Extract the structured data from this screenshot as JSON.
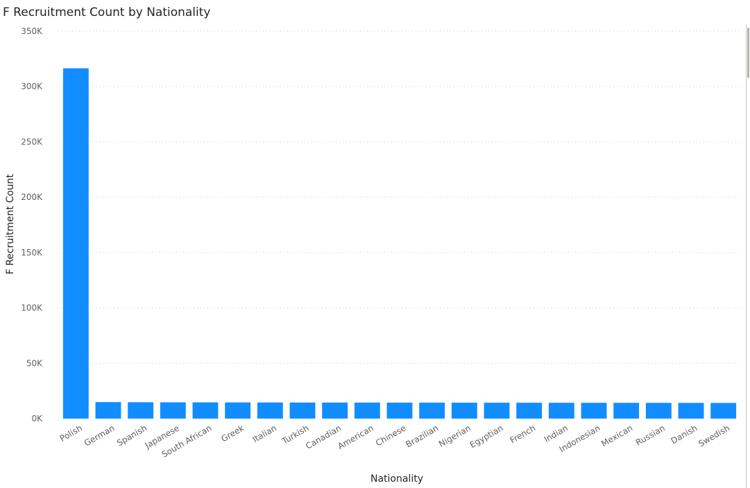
{
  "chart_data": {
    "type": "bar",
    "title": "F Recruitment Count by Nationality",
    "xlabel": "Nationality",
    "ylabel": "F Recruitment Count",
    "categories": [
      "Polish",
      "German",
      "Spanish",
      "Japanese",
      "South African",
      "Greek",
      "Italian",
      "Turkish",
      "Canadian",
      "American",
      "Chinese",
      "Brazilian",
      "Nigerian",
      "Egyptian",
      "French",
      "Indian",
      "Indonesian",
      "Mexican",
      "Russian",
      "Danish",
      "Swedish"
    ],
    "values": [
      316500,
      14900,
      14800,
      14700,
      14650,
      14600,
      14550,
      14500,
      14480,
      14450,
      14420,
      14400,
      14380,
      14350,
      14330,
      14300,
      14280,
      14250,
      14230,
      14200,
      14150
    ],
    "ylim": [
      0,
      350000
    ],
    "yticks": [
      {
        "value": 0,
        "label": "0K"
      },
      {
        "value": 50000,
        "label": "50K"
      },
      {
        "value": 100000,
        "label": "100K"
      },
      {
        "value": 150000,
        "label": "150K"
      },
      {
        "value": 200000,
        "label": "200K"
      },
      {
        "value": 250000,
        "label": "250K"
      },
      {
        "value": 300000,
        "label": "300K"
      },
      {
        "value": 350000,
        "label": "350K"
      }
    ],
    "grid": true,
    "bar_color": "#118dff",
    "grid_color": "#c8c6c4"
  }
}
